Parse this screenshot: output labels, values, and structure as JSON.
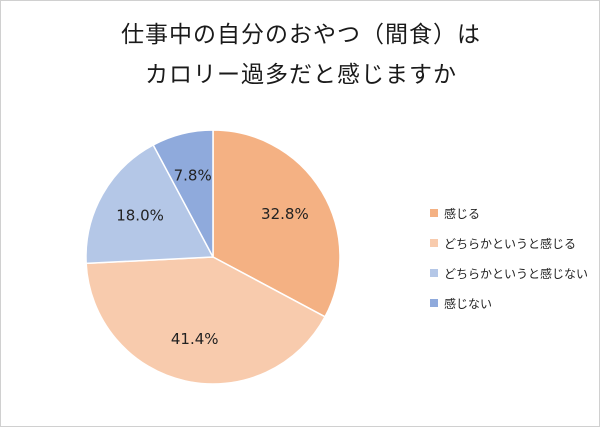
{
  "chart_data": {
    "type": "pie",
    "title_lines": [
      "仕事中の自分のおやつ（間食）は",
      "カロリー過多だと感じますか"
    ],
    "categories": [
      "感じる",
      "どちらかというと感じる",
      "どちらかというと感じない",
      "感じない"
    ],
    "values": [
      32.8,
      41.4,
      18.0,
      7.8
    ],
    "value_labels": [
      "32.8%",
      "41.4%",
      "18.0%",
      "7.8%"
    ],
    "colors": [
      "#f4b183",
      "#f8cbad",
      "#b4c7e7",
      "#8faadc"
    ],
    "start": "12 o'clock",
    "direction": "clockwise",
    "legend_position": "right"
  }
}
